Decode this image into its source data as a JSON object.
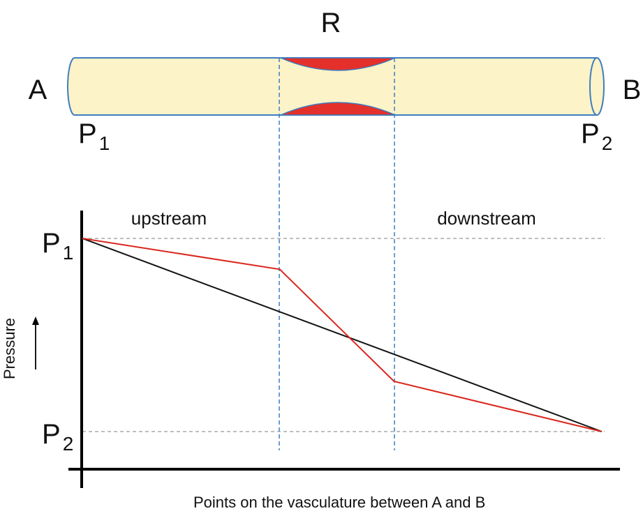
{
  "vessel": {
    "label_resistance": "R",
    "label_start": "A",
    "label_end": "B",
    "start_pressure": {
      "base": "P",
      "sub": "1"
    },
    "end_pressure": {
      "base": "P",
      "sub": "2"
    },
    "colors": {
      "tube_fill": "#fdf3c8",
      "tube_stroke": "#3d7dc0",
      "plaque": "#e4302a"
    }
  },
  "graph": {
    "region_upstream": "upstream",
    "region_downstream": "downstream",
    "y_label": "Pressure",
    "x_label": "Points on the vasculature between A and B",
    "y_tick_top": {
      "base": "P",
      "sub": "1"
    },
    "y_tick_bottom": {
      "base": "P",
      "sub": "2"
    },
    "colors": {
      "uniform_line": "#111111",
      "stenosis_line": "#d9261c",
      "reference": "#999999",
      "divider": "#3d7dc0"
    }
  },
  "chart_data": {
    "type": "line",
    "x_range": [
      "A",
      "B"
    ],
    "y_range": [
      "P2",
      "P1"
    ],
    "series": [
      {
        "points": [
          [
            0,
            1.0
          ],
          [
            1.0,
            0.0
          ]
        ],
        "color": "#111111"
      },
      {
        "points": [
          [
            0,
            1.0
          ],
          [
            0.38,
            0.84
          ],
          [
            0.6,
            0.26
          ],
          [
            1.0,
            0.0
          ]
        ],
        "color": "#d9261c"
      }
    ],
    "stenosis_region": [
      0.38,
      0.6
    ]
  }
}
